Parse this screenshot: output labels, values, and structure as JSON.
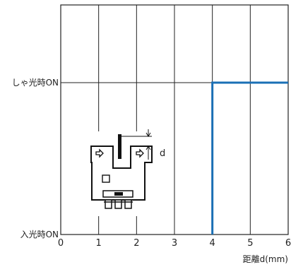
{
  "chart_data": {
    "type": "line",
    "xlabel": "距離d(mm)",
    "ylabel": "",
    "xlim": [
      0,
      6
    ],
    "x_ticks": [
      "0",
      "1",
      "2",
      "3",
      "4",
      "5",
      "6"
    ],
    "y_levels": [
      "入光時ON",
      "しゃ光時ON"
    ],
    "grid": true,
    "series": [
      {
        "color": "#1a6fb5",
        "points": [
          {
            "x": 4,
            "y": "入光時ON"
          },
          {
            "x": 4,
            "y": "しゃ光時ON"
          },
          {
            "x": 6,
            "y": "しゃ光時ON"
          }
        ]
      }
    ],
    "annotations": [
      {
        "text": "d"
      }
    ]
  }
}
